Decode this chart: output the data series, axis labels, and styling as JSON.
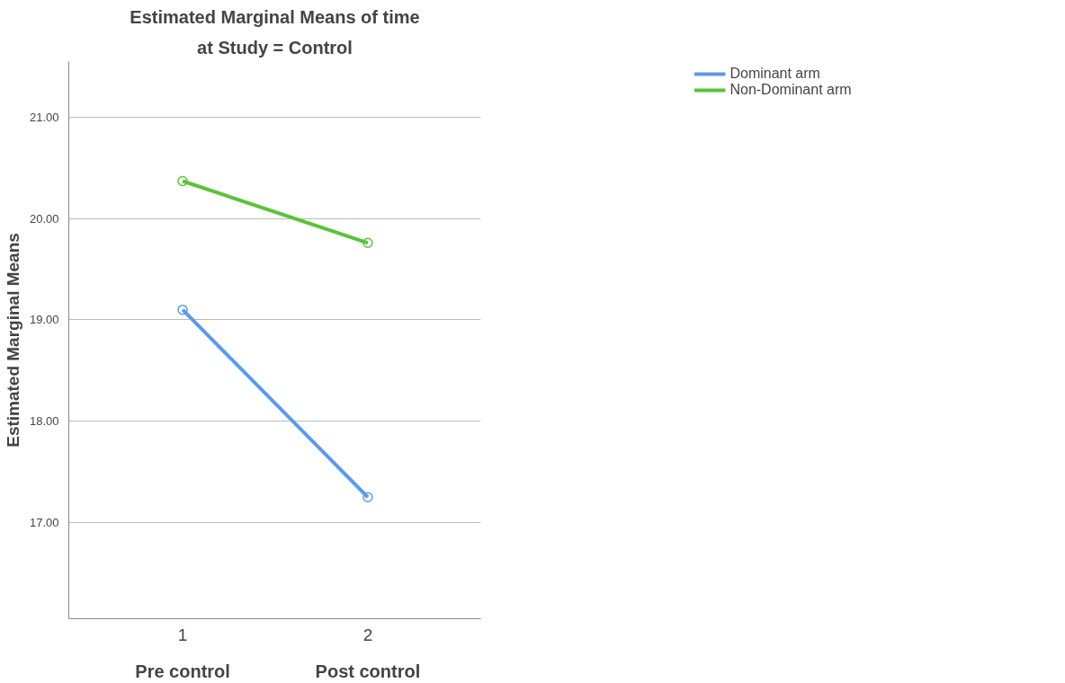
{
  "chart_data": {
    "type": "line",
    "title": "Estimated Marginal Means of time",
    "subtitle": "at Study = Control",
    "ylabel": "Estimated Marginal Means",
    "categories": [
      "1",
      "2"
    ],
    "annotations": [
      "Pre control",
      "Post control"
    ],
    "series": [
      {
        "name": "Dominant arm",
        "color": "#5b9be8",
        "values": [
          19.1,
          17.25
        ]
      },
      {
        "name": "Non-Dominant arm",
        "color": "#5bc23a",
        "values": [
          20.37,
          19.76
        ]
      }
    ],
    "ylim": [
      16.05,
      21.55
    ],
    "yticks": [
      {
        "value": 17,
        "label": "17.00"
      },
      {
        "value": 18,
        "label": "18.00"
      },
      {
        "value": 19,
        "label": "19.00"
      },
      {
        "value": 20,
        "label": "20.00"
      },
      {
        "value": 21,
        "label": "21.00"
      }
    ],
    "grid": "y",
    "legend": "top right",
    "marker": "circle",
    "line_style": "solid"
  }
}
